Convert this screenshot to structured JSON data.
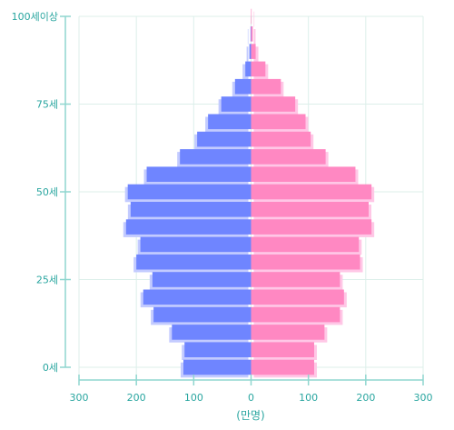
{
  "chart_data": {
    "type": "bar",
    "orientation": "horizontal-pyramid",
    "title": "",
    "xlabel": "(만명)",
    "ylabel": "",
    "grid": true,
    "legend": "none",
    "xlim": [
      -300,
      300
    ],
    "x_ticks": [
      {
        "value": -300,
        "label": "300"
      },
      {
        "value": -200,
        "label": "200"
      },
      {
        "value": -100,
        "label": "100"
      },
      {
        "value": 0,
        "label": "0"
      },
      {
        "value": 100,
        "label": "100"
      },
      {
        "value": 200,
        "label": "200"
      },
      {
        "value": 300,
        "label": "300"
      }
    ],
    "y_ticks": [
      {
        "age": 0,
        "label": "0세"
      },
      {
        "age": 25,
        "label": "25세"
      },
      {
        "age": 50,
        "label": "50세"
      },
      {
        "age": 75,
        "label": "75세"
      },
      {
        "age": 100,
        "label": "100세이상"
      }
    ],
    "age_groups": [
      0,
      5,
      10,
      15,
      20,
      25,
      30,
      35,
      40,
      45,
      50,
      55,
      60,
      65,
      70,
      75,
      80,
      85,
      90,
      95,
      100
    ],
    "series": [
      {
        "side": "left",
        "color": "#6f85ff",
        "shadow": "#c3cbff",
        "values": [
          118,
          116,
          138,
          170,
          188,
          172,
          200,
          193,
          218,
          210,
          215,
          182,
          124,
          94,
          75,
          52,
          28,
          10,
          3,
          1,
          0
        ]
      },
      {
        "side": "right",
        "color": "#ff88c2",
        "shadow": "#ffc7e6",
        "values": [
          110,
          110,
          128,
          155,
          162,
          155,
          190,
          188,
          210,
          205,
          210,
          182,
          130,
          104,
          95,
          77,
          52,
          25,
          8,
          3,
          1
        ]
      }
    ]
  },
  "colors": {
    "axis": "#8fd6cf",
    "tick_text": "#2aa6a0",
    "grid": "#dcefea"
  }
}
